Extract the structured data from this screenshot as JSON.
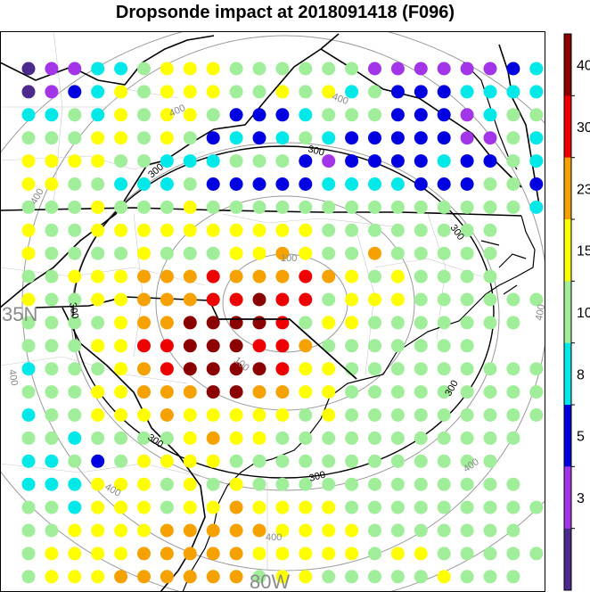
{
  "title": "Dropsonde impact at 2018091418 (F096)",
  "map_labels": {
    "latitude": "35N",
    "longitude": "80W",
    "ring_values": [
      "100",
      "300",
      "400"
    ]
  },
  "colorbar": {
    "levels": [
      "3",
      "5",
      "8",
      "10",
      "15",
      "23",
      "30",
      "40"
    ],
    "colors": [
      "#4b2a8c",
      "#a335e8",
      "#0000e0",
      "#00e8e8",
      "#a0ee9a",
      "#ffff00",
      "#f5a100",
      "#ee0000",
      "#8b0000"
    ]
  },
  "legend_codes": {
    "P": "#4b2a8c",
    "V": "#a335e8",
    "B": "#0000e0",
    "C": "#00e8e8",
    "G": "#a0ee9a",
    "Y": "#ffff00",
    "O": "#f5a100",
    "R": "#ee0000",
    "M": "#8b0000"
  },
  "grid_rows": [
    "PVVCCGYYYGGGGGGVVVVVVBC",
    "PVBCYGYYYGGYGYCGBBBCCCC",
    "CCGCYGYYGBBBCGGGBBBVCGG",
    "GGGYYGYGBCBCGCBBBBBVVGC",
    "YYYYGGCCCGGGBVBBBBCBBGC",
    "YYGGCCCGBBBBBCCCCBBBGGB",
    "GGGYGGGYGGGGGGGGGGGGGGC",
    "YGGYYYYYYYYYYGGGGGGGG",
    "YGGGGYGGGYYOYGGOGGGGG",
    "GGYYYOOOROOOROYGYGGGG",
    "YGGYYOOORRMRRGYYYGGGGGG",
    "GGGGYOOMMMMRGYYGGGGGGG",
    "GGGYYRRMMMRROGGGGGGG",
    "CGGGYORMMMMRYYGGGGGGGGG",
    "GGGYYOOOMMOOYYGGGGGGGGG",
    "CGGYYYOYYYYYGYGGGGGGGGG",
    "GGCGGGGYOYYGGGGGGGGGGG",
    "CCGBGYYYYGGGGGGGGGGGG",
    "CCCYYYGYGYGGGGGGGGGGGG",
    "GGCYYYGYYOYYYYGGGGGGGGG",
    "GGYYYYOOOOOYYYYGGGGGGG",
    "GYYYYOOOOOYYYYYGYYGGGGG",
    "GYYYOOOOOOGYYGGGGGYGGG"
  ]
}
